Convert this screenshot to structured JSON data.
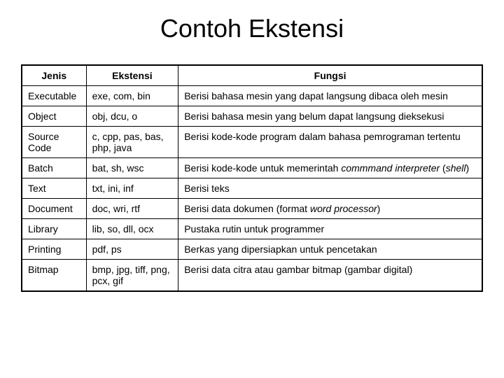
{
  "title": "Contoh Ekstensi",
  "table": {
    "type": "table",
    "background_color": "#ffffff",
    "border_color": "#000000",
    "text_color": "#000000",
    "title_fontsize": 36,
    "cell_fontsize": 14,
    "columns": [
      {
        "label": "Jenis",
        "width": "14%"
      },
      {
        "label": "Ekstensi",
        "width": "20%"
      },
      {
        "label": "Fungsi",
        "width": "66%"
      }
    ],
    "rows": [
      {
        "jenis": "Executable",
        "ekstensi": "exe, com, bin",
        "fungsi": "Berisi bahasa mesin yang dapat langsung dibaca oleh mesin"
      },
      {
        "jenis": "Object",
        "ekstensi": "obj, dcu, o",
        "fungsi": "Berisi bahasa mesin yang belum dapat langsung dieksekusi"
      },
      {
        "jenis": "Source Code",
        "ekstensi": "c, cpp, pas, bas, php, java",
        "fungsi": "Berisi kode-kode program dalam bahasa pemrograman tertentu"
      },
      {
        "jenis": "Batch",
        "ekstensi": "bat, sh, wsc",
        "fungsi_html": "Berisi kode-kode untuk memerintah <span class=\"italic\">commmand interpreter</span> (<span class=\"italic\">shell</span>)"
      },
      {
        "jenis": "Text",
        "ekstensi": "txt, ini, inf",
        "fungsi": "Berisi teks"
      },
      {
        "jenis": "Document",
        "ekstensi": "doc, wri, rtf",
        "fungsi_html": "Berisi data dokumen (format <span class=\"italic\">word processor</span>)"
      },
      {
        "jenis": "Library",
        "ekstensi": "lib, so, dll, ocx",
        "fungsi": "Pustaka rutin untuk programmer"
      },
      {
        "jenis": "Printing",
        "ekstensi": "pdf, ps",
        "fungsi": "Berkas yang dipersiapkan untuk pencetakan"
      },
      {
        "jenis": "Bitmap",
        "ekstensi": "bmp, jpg, tiff, png, pcx, gif",
        "fungsi": "Berisi data citra atau gambar bitmap (gambar digital)"
      }
    ]
  }
}
